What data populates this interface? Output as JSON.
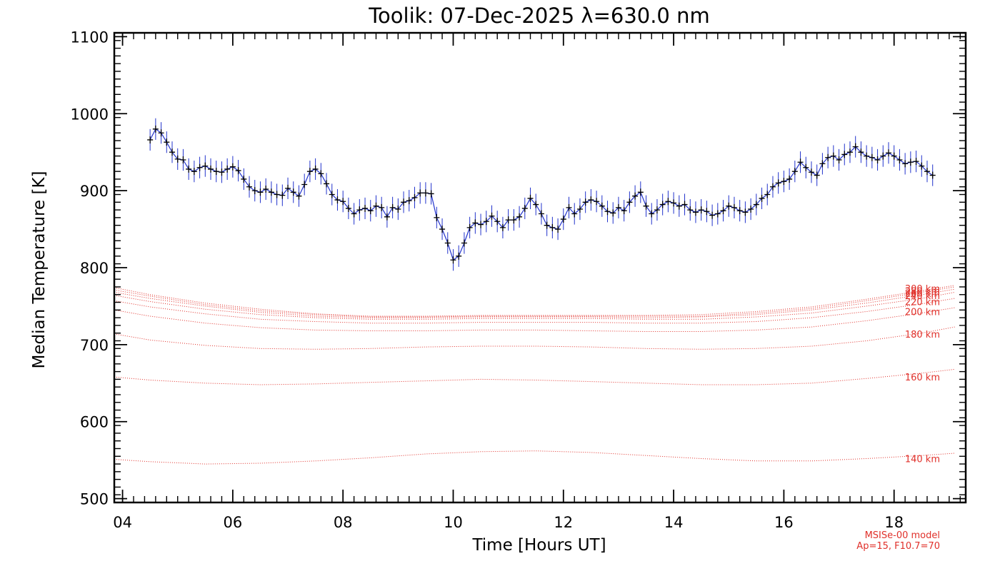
{
  "chart_data": {
    "type": "line",
    "title": "Toolik: 07-Dec-2025 λ=630.0 nm",
    "xlabel": "Time [Hours UT]",
    "ylabel": "Median Temperature [K]",
    "xlim": [
      3.85,
      19.3
    ],
    "ylim": [
      495,
      1105
    ],
    "x_ticks": [
      4,
      6,
      8,
      10,
      12,
      14,
      16,
      18
    ],
    "x_tick_labels": [
      "04",
      "06",
      "08",
      "10",
      "12",
      "14",
      "16",
      "18"
    ],
    "y_ticks": [
      500,
      600,
      700,
      800,
      900,
      1000,
      1100
    ],
    "y_tick_labels": [
      "500",
      "600",
      "700",
      "800",
      "900",
      "1000",
      "1100"
    ],
    "colors": {
      "measurement": "#000000",
      "error_bars": "#2233cc",
      "model": "#e0302a"
    },
    "measurement": {
      "name": "Median temperature",
      "error": 14,
      "x": [
        4.5,
        4.6,
        4.7,
        4.8,
        4.9,
        5.0,
        5.1,
        5.2,
        5.3,
        5.4,
        5.5,
        5.6,
        5.7,
        5.8,
        5.9,
        6.0,
        6.1,
        6.2,
        6.3,
        6.4,
        6.5,
        6.6,
        6.7,
        6.8,
        6.9,
        7.0,
        7.1,
        7.2,
        7.3,
        7.4,
        7.5,
        7.6,
        7.7,
        7.8,
        7.9,
        8.0,
        8.1,
        8.2,
        8.3,
        8.4,
        8.5,
        8.6,
        8.7,
        8.8,
        8.9,
        9.0,
        9.1,
        9.2,
        9.3,
        9.4,
        9.5,
        9.6,
        9.7,
        9.8,
        9.9,
        10.0,
        10.1,
        10.2,
        10.3,
        10.4,
        10.5,
        10.6,
        10.7,
        10.8,
        10.9,
        11.0,
        11.1,
        11.2,
        11.3,
        11.4,
        11.5,
        11.6,
        11.7,
        11.8,
        11.9,
        12.0,
        12.1,
        12.2,
        12.3,
        12.4,
        12.5,
        12.6,
        12.7,
        12.8,
        12.9,
        13.0,
        13.1,
        13.2,
        13.3,
        13.4,
        13.5,
        13.6,
        13.7,
        13.8,
        13.9,
        14.0,
        14.1,
        14.2,
        14.3,
        14.4,
        14.5,
        14.6,
        14.7,
        14.8,
        14.9,
        15.0,
        15.1,
        15.2,
        15.3,
        15.4,
        15.5,
        15.6,
        15.7,
        15.8,
        15.9,
        16.0,
        16.1,
        16.2,
        16.3,
        16.4,
        16.5,
        16.6,
        16.7,
        16.8,
        16.9,
        17.0,
        17.1,
        17.2,
        17.3,
        17.4,
        17.5,
        17.6,
        17.7,
        17.8,
        17.9,
        18.0,
        18.1,
        18.2,
        18.3,
        18.4,
        18.5,
        18.6,
        18.7
      ],
      "y": [
        966,
        980,
        975,
        963,
        950,
        941,
        940,
        928,
        925,
        930,
        932,
        928,
        925,
        924,
        928,
        931,
        926,
        915,
        905,
        900,
        898,
        902,
        898,
        895,
        894,
        903,
        898,
        893,
        908,
        925,
        928,
        922,
        909,
        895,
        888,
        886,
        877,
        870,
        875,
        877,
        874,
        880,
        878,
        866,
        878,
        876,
        885,
        887,
        891,
        897,
        897,
        896,
        865,
        850,
        832,
        810,
        815,
        832,
        852,
        858,
        856,
        860,
        867,
        860,
        852,
        862,
        862,
        866,
        877,
        890,
        882,
        870,
        855,
        852,
        850,
        863,
        878,
        870,
        876,
        885,
        888,
        886,
        880,
        873,
        871,
        878,
        874,
        885,
        893,
        898,
        880,
        870,
        875,
        882,
        886,
        884,
        880,
        882,
        875,
        872,
        875,
        873,
        868,
        870,
        874,
        880,
        878,
        874,
        872,
        876,
        882,
        890,
        895,
        905,
        910,
        912,
        915,
        925,
        937,
        930,
        924,
        920,
        935,
        943,
        945,
        940,
        947,
        950,
        957,
        950,
        945,
        943,
        940,
        945,
        949,
        945,
        940,
        935,
        937,
        938,
        932,
        925,
        920
      ]
    },
    "model_annotation": [
      "MSISe-00 model",
      "Ap=15, F10.7=70"
    ],
    "model_x": [
      3.85,
      4.5,
      5.5,
      6.5,
      7.5,
      8.5,
      9.5,
      10.5,
      11.5,
      12.5,
      13.5,
      14.5,
      15.5,
      16.5,
      17.5,
      18.5,
      19.1
    ],
    "model_series": [
      {
        "name": "140 km",
        "label": "140 km",
        "label_value": 552,
        "values": [
          551,
          548,
          545,
          546,
          549,
          553,
          558,
          561,
          562,
          560,
          556,
          552,
          549,
          549,
          552,
          556,
          559
        ]
      },
      {
        "name": "160 km",
        "label": "160 km",
        "label_value": 658,
        "values": [
          658,
          654,
          650,
          648,
          649,
          651,
          653,
          655,
          654,
          652,
          650,
          648,
          648,
          650,
          656,
          663,
          668
        ]
      },
      {
        "name": "180 km",
        "label": "180 km",
        "label_value": 714,
        "values": [
          714,
          706,
          699,
          695,
          694,
          695,
          697,
          698,
          698,
          697,
          695,
          694,
          695,
          698,
          705,
          715,
          723
        ]
      },
      {
        "name": "200 km",
        "label": "200 km",
        "label_value": 743,
        "values": [
          745,
          737,
          728,
          722,
          719,
          718,
          718,
          719,
          719,
          718,
          717,
          717,
          719,
          723,
          731,
          741,
          748
        ]
      },
      {
        "name": "220 km",
        "label": "220 km",
        "label_value": 756,
        "values": [
          757,
          749,
          740,
          733,
          730,
          728,
          728,
          729,
          729,
          729,
          728,
          728,
          730,
          735,
          743,
          753,
          760
        ]
      },
      {
        "name": "240 km",
        "label": "240 km",
        "label_value": 764,
        "values": [
          764,
          756,
          746,
          739,
          735,
          733,
          733,
          734,
          734,
          734,
          733,
          733,
          736,
          741,
          750,
          760,
          768
        ]
      },
      {
        "name": "260 km",
        "label": "260 km",
        "label_value": 767,
        "values": [
          768,
          760,
          750,
          742,
          737,
          735,
          735,
          736,
          736,
          736,
          735,
          736,
          739,
          745,
          754,
          765,
          772
        ]
      },
      {
        "name": "280 km",
        "label": "280 km",
        "label_value": 770,
        "values": [
          771,
          763,
          752,
          744,
          739,
          736,
          736,
          737,
          737,
          737,
          737,
          737,
          741,
          747,
          757,
          768,
          775
        ]
      },
      {
        "name": "300 km",
        "label": "300 km",
        "label_value": 773,
        "values": [
          774,
          765,
          754,
          746,
          740,
          737,
          737,
          738,
          738,
          738,
          738,
          739,
          743,
          749,
          759,
          770,
          777
        ]
      }
    ]
  }
}
